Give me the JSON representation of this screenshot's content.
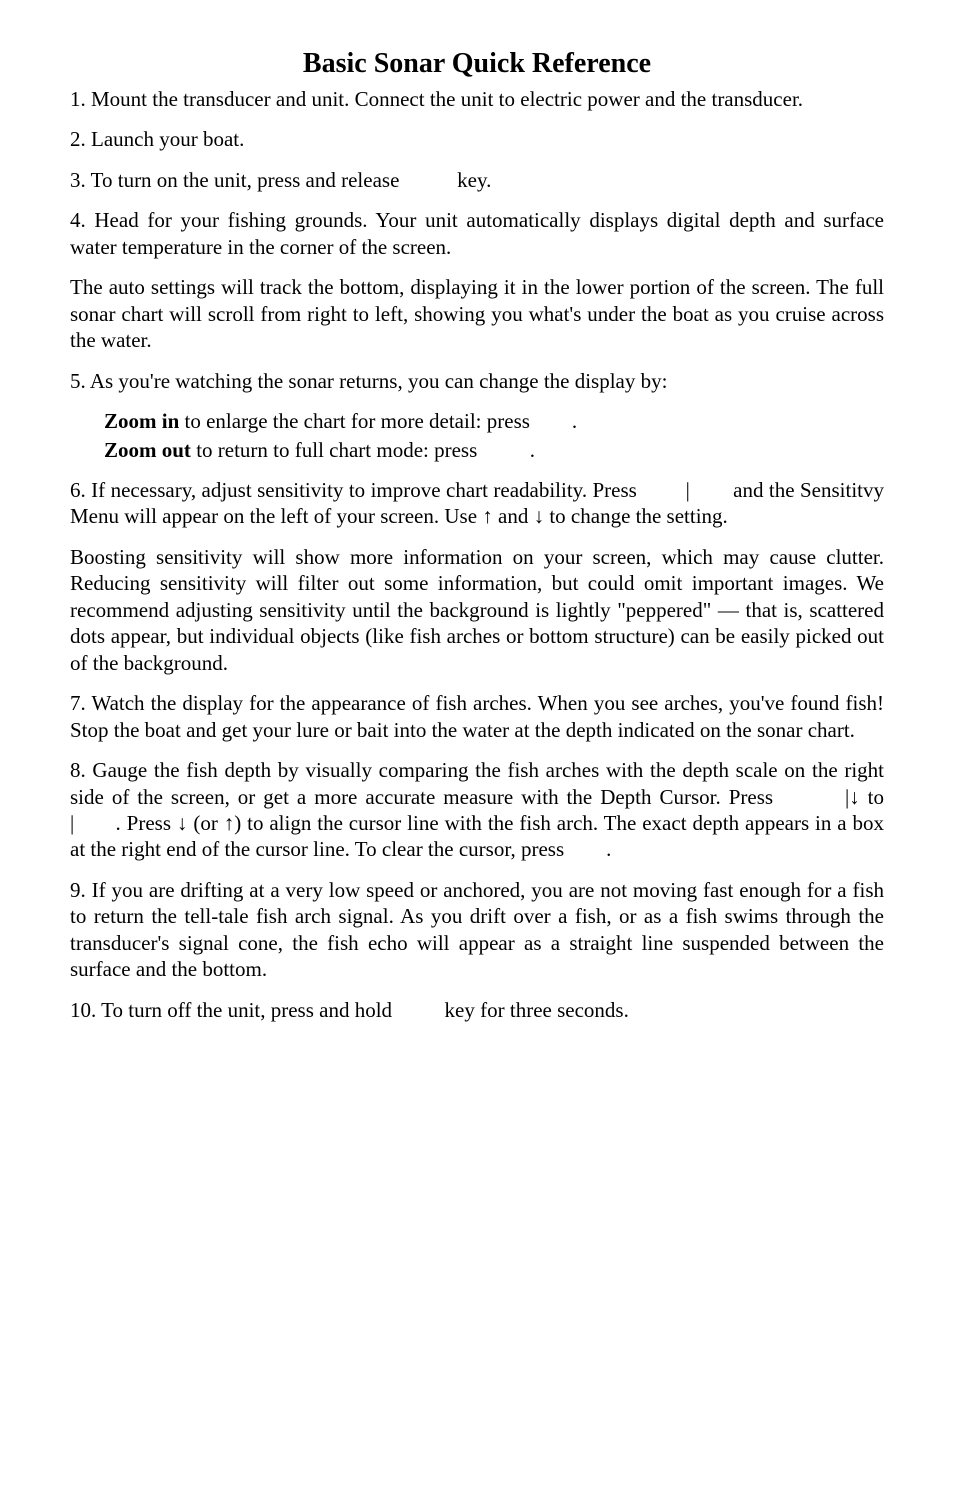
{
  "title": "Basic Sonar Quick Reference",
  "p1": "1. Mount the transducer and unit. Connect the unit to electric power and the transducer.",
  "p2": "2. Launch your boat.",
  "p3": "3. To turn on the unit, press and release           key.",
  "p4": "4. Head for your fishing grounds. Your unit automatically displays digital depth and surface water temperature in the corner of the screen.",
  "p5": "The auto settings will track the bottom, displaying it in the lower portion of the screen. The full sonar chart will scroll from right to left, showing you what's under the boat as you cruise across the water.",
  "p6": "5. As you're watching the sonar returns, you can change the display by:",
  "zoom_in_label": "Zoom in",
  "zoom_in_rest": " to enlarge the chart for more detail: press        .",
  "zoom_out_label": "Zoom out",
  "zoom_out_rest": " to return to full chart mode: press          .",
  "p7": "6. If necessary, adjust sensitivity to improve chart readability. Press         |        and the Sensititvy Menu will appear on the left of your screen. Use ↑ and ↓ to change the setting.",
  "p8": "Boosting sensitivity will show more information on your screen, which may cause clutter. Reducing sensitivity will filter out some information, but could omit important images. We recommend adjusting sensitivity until the background is lightly \"peppered\" — that is, scattered dots appear, but individual objects (like fish arches or bottom structure) can be easily picked out of the background.",
  "p9": "7. Watch the display for the appearance of fish arches. When you see arches, you've found fish! Stop the boat and get your lure or bait into the water at the depth indicated on the sonar chart.",
  "p10": "8. Gauge the fish depth by visually comparing the fish arches with the depth scale on the right side of the screen, or get a more accurate measure with the Depth Cursor. Press         |↓ to                       |       . Press ↓ (or ↑) to align the cursor line with the fish arch. The exact depth appears in a box at the right end of the cursor line. To clear the cursor, press        .",
  "p11": "9. If you are drifting at a very low speed or anchored, you are not moving fast enough for a fish to return the tell-tale fish arch signal. As you drift over a fish, or as a fish swims through the transducer's signal cone, the fish echo will appear as a straight line suspended between the surface and the bottom.",
  "p12": "10. To turn off the unit, press and hold          key for three seconds."
}
